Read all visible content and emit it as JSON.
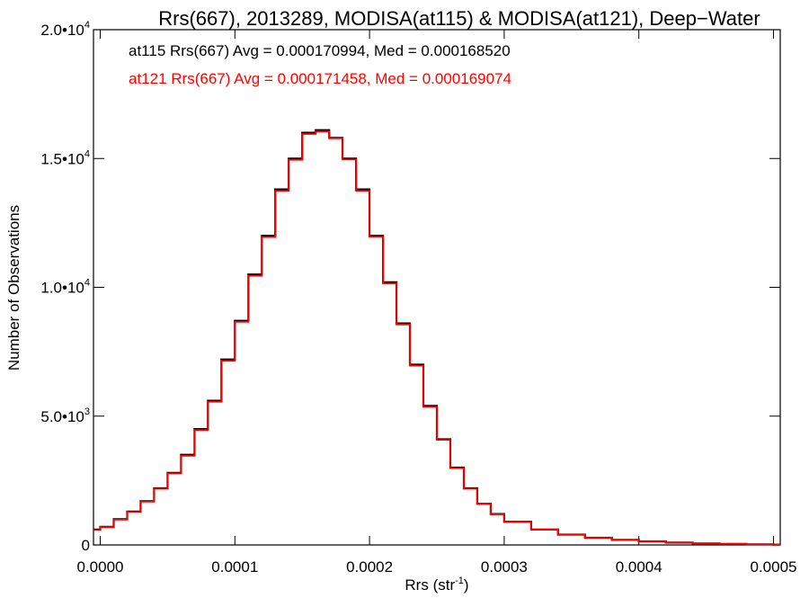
{
  "chart_data": {
    "type": "line",
    "title": "Rrs(667), 2013289, MODISA(at115) & MODISA(at121), Deep−Water",
    "xlabel": "Rrs (str",
    "xlabel_sup": "-1",
    "xlabel_close": ")",
    "ylabel": "Number of Observations",
    "xlim": [
      -5e-06,
      0.000505
    ],
    "ylim": [
      0,
      20000
    ],
    "xticks": [
      "0.0000",
      "0.0001",
      "0.0002",
      "0.0003",
      "0.0004",
      "0.0005"
    ],
    "xtick_values": [
      0,
      0.0001,
      0.0002,
      0.0003,
      0.0004,
      0.0005
    ],
    "yticks": [
      {
        "value": 0,
        "mant": "0",
        "exp": ""
      },
      {
        "value": 5000,
        "mant": "5.0•10",
        "exp": "3"
      },
      {
        "value": 10000,
        "mant": "1.0•10",
        "exp": "4"
      },
      {
        "value": 15000,
        "mant": "1.5•10",
        "exp": "4"
      },
      {
        "value": 20000,
        "mant": "2.0•10",
        "exp": "4"
      }
    ],
    "grid": false,
    "legend": "top-left",
    "step": true,
    "x": [
      -5e-06,
      0,
      1e-05,
      2e-05,
      3e-05,
      4e-05,
      5e-05,
      6e-05,
      7e-05,
      8e-05,
      9e-05,
      0.0001,
      0.00011,
      0.00012,
      0.00013,
      0.00014,
      0.00015,
      0.00016,
      0.00017,
      0.00018,
      0.00019,
      0.0002,
      0.00021,
      0.00022,
      0.00023,
      0.00024,
      0.00025,
      0.00026,
      0.00027,
      0.00028,
      0.00029,
      0.0003,
      0.00032,
      0.00034,
      0.00036,
      0.00038,
      0.0004,
      0.00042,
      0.00044,
      0.00046,
      0.00048,
      0.0005,
      0.000505
    ],
    "series": [
      {
        "name": "at115",
        "label": "at115 Rrs(667) Avg = 0.000170994, Med = 0.000168520",
        "color": "#000000",
        "values": [
          600,
          700,
          1000,
          1300,
          1700,
          2200,
          2800,
          3500,
          4500,
          5600,
          7200,
          8700,
          10500,
          12000,
          13800,
          15000,
          16000,
          16100,
          15800,
          15000,
          13800,
          12000,
          10200,
          8600,
          7000,
          5400,
          4100,
          3000,
          2200,
          1600,
          1200,
          900,
          600,
          400,
          280,
          200,
          140,
          90,
          60,
          40,
          20,
          10,
          10
        ]
      },
      {
        "name": "at121",
        "label": "at121 Rrs(667) Avg = 0.000171458, Med = 0.000169074",
        "color": "#ff0000",
        "values": [
          580,
          690,
          980,
          1280,
          1680,
          2180,
          2780,
          3460,
          4460,
          5560,
          7150,
          8660,
          10450,
          11950,
          13750,
          14950,
          15950,
          16050,
          15780,
          14960,
          13750,
          11960,
          10150,
          8560,
          6960,
          5360,
          4080,
          2980,
          2180,
          1590,
          1190,
          890,
          600,
          400,
          280,
          200,
          140,
          90,
          60,
          40,
          20,
          10,
          10
        ]
      }
    ]
  }
}
